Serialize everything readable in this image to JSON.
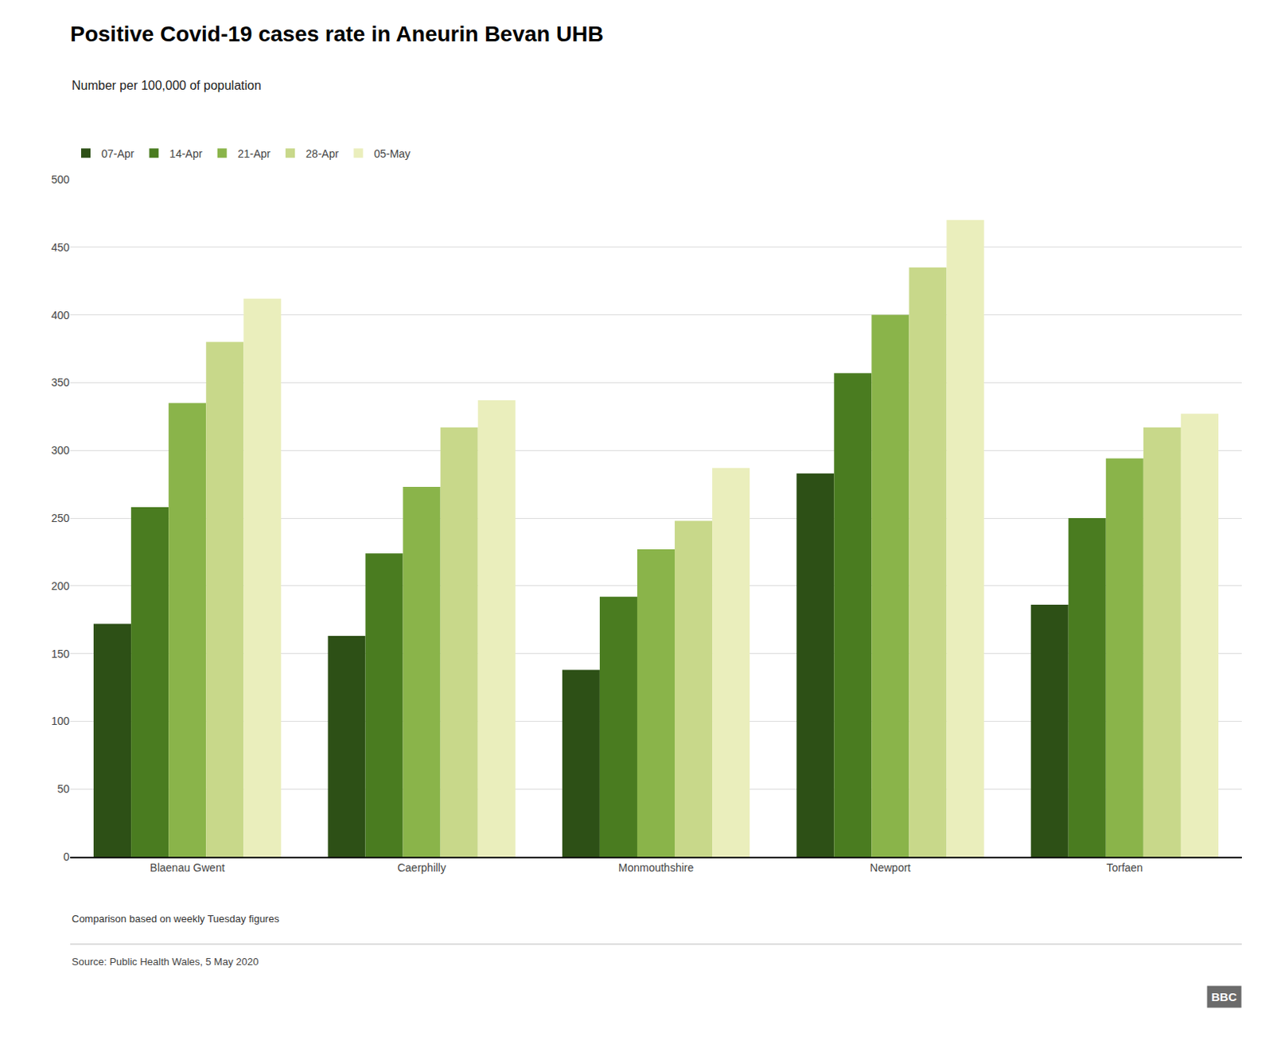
{
  "chart_data": {
    "type": "bar",
    "title": "Positive Covid-19 cases rate in Aneurin Bevan UHB",
    "subtitle": "Number per 100,000 of population",
    "categories": [
      "Blaenau Gwent",
      "Caerphilly",
      "Monmouthshire",
      "Newport",
      "Torfaen"
    ],
    "series": [
      {
        "name": "07-Apr",
        "color": "#2d5016",
        "values": [
          172,
          163,
          138,
          283,
          186
        ]
      },
      {
        "name": "14-Apr",
        "color": "#4a7c20",
        "values": [
          258,
          224,
          192,
          357,
          250
        ]
      },
      {
        "name": "21-Apr",
        "color": "#8ab44a",
        "values": [
          335,
          273,
          227,
          400,
          294
        ]
      },
      {
        "name": "28-Apr",
        "color": "#c8d88a",
        "values": [
          380,
          317,
          248,
          435,
          317
        ]
      },
      {
        "name": "05-May",
        "color": "#eaeebc",
        "values": [
          412,
          337,
          287,
          470,
          327
        ]
      }
    ],
    "ylim": [
      0,
      500
    ],
    "yticks": [
      0,
      50,
      100,
      150,
      200,
      250,
      300,
      350,
      400,
      450,
      500
    ],
    "grid": true,
    "legend": "top left",
    "annotations": [
      "Comparison based on weekly Tuesday figures",
      "Source: Public Health Wales, 5 May 2020",
      "BBC"
    ]
  }
}
